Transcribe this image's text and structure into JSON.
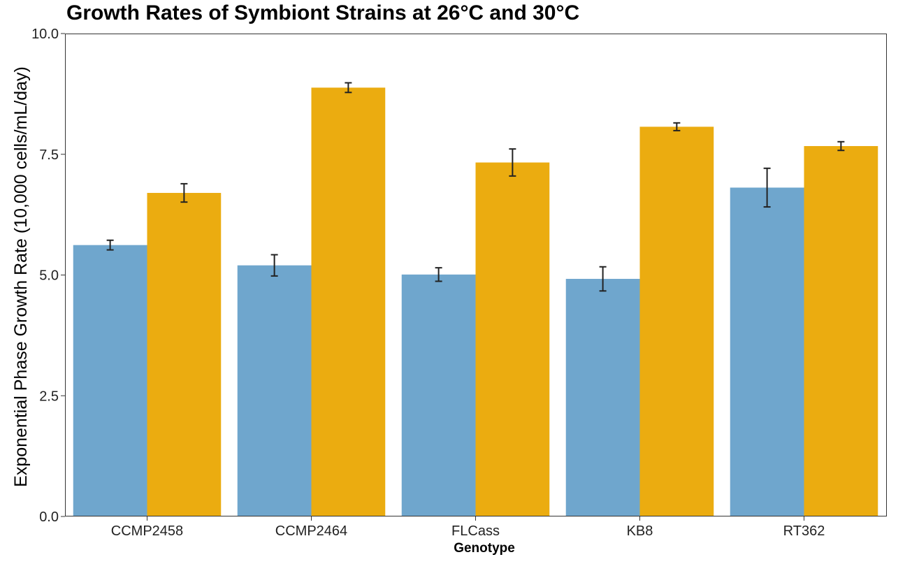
{
  "chart_data": {
    "type": "bar",
    "title": "Growth Rates of Symbiont Strains at 26°C and 30°C",
    "xlabel": "Genotype",
    "ylabel": "Exponential Phase Growth Rate (10,000 cells/mL/day)",
    "categories": [
      "CCMP2458",
      "CCMP2464",
      "FLCass",
      "KB8",
      "RT362"
    ],
    "series": [
      {
        "values": [
          5.62,
          5.2,
          5.01,
          4.92,
          6.81
        ],
        "errors": [
          0.1,
          0.22,
          0.14,
          0.25,
          0.4
        ],
        "color": "#6fa6cd"
      },
      {
        "values": [
          6.7,
          8.88,
          7.33,
          8.07,
          7.67
        ],
        "errors": [
          0.19,
          0.1,
          0.28,
          0.08,
          0.09
        ],
        "color": "#ebac10"
      }
    ],
    "ylim": [
      0,
      10
    ],
    "yticks": [
      "0.0",
      "2.5",
      "5.0",
      "7.5",
      "10.0"
    ],
    "grid": false,
    "legend": false
  }
}
